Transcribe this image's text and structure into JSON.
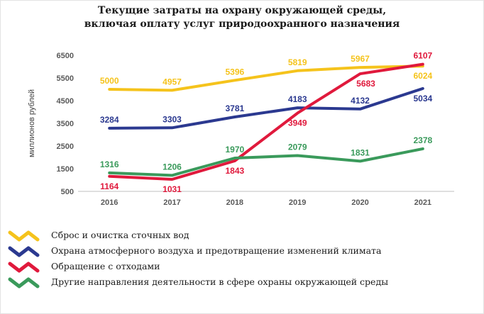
{
  "chart_data": {
    "type": "line",
    "title": "Текущие затраты на охрану окружающей среды,",
    "subtitle": "включая оплату услуг природоохранного назначения",
    "ylabel": "миллионов рублей",
    "xlabel": "",
    "x": [
      "2016",
      "2017",
      "2018",
      "2019",
      "2020",
      "2021"
    ],
    "ylim": [
      500,
      6500
    ],
    "yticks": [
      "500",
      "1500",
      "2500",
      "3500",
      "4500",
      "5500",
      "6500"
    ],
    "grid": false,
    "legend_position": "bottom",
    "series": [
      {
        "name": "Сброс и очистка сточных вод",
        "color": "#f5c31c",
        "values": [
          5000,
          4957,
          5396,
          5819,
          5967,
          6024
        ]
      },
      {
        "name": "Охрана атмосферного воздуха и предотвращение изменений климата",
        "color": "#2b3990",
        "values": [
          3284,
          3303,
          3781,
          4183,
          4132,
          5034
        ]
      },
      {
        "name": "Обращение с отходами",
        "color": "#e0193c",
        "values": [
          1164,
          1031,
          1843,
          3949,
          5683,
          6107
        ]
      },
      {
        "name": "Другие направления деятельности в сфере охраны окружающей среды",
        "color": "#3a9a5b",
        "values": [
          1316,
          1206,
          1970,
          2079,
          1831,
          2378
        ]
      }
    ]
  }
}
